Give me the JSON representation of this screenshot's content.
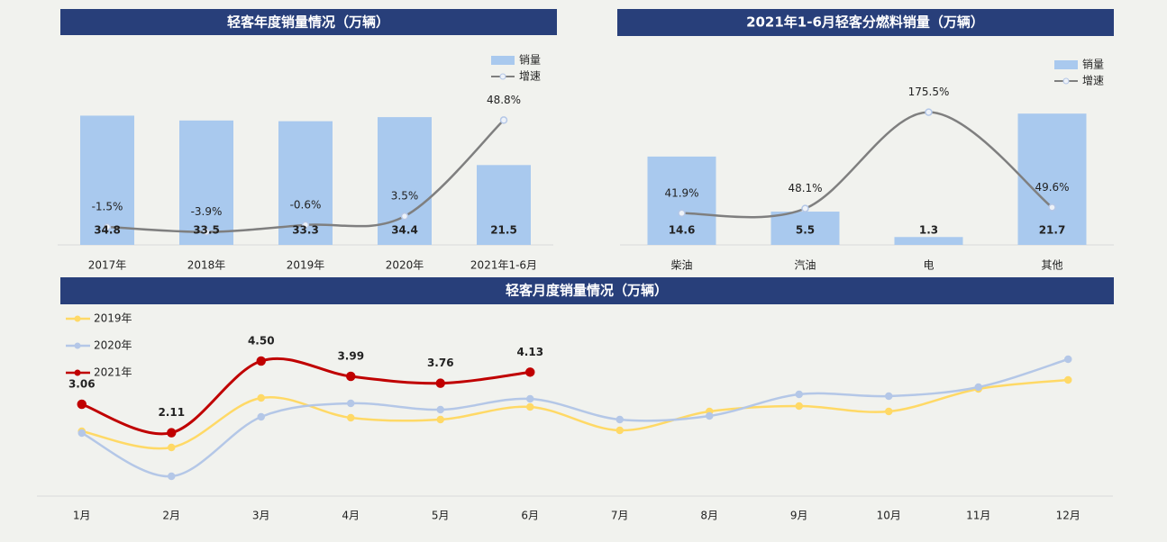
{
  "chart_data": [
    {
      "type": "combo",
      "title": "轻客年度销量情况（万辆）",
      "categories": [
        "2017年",
        "2018年",
        "2019年",
        "2020年",
        "2021年1-6月"
      ],
      "series": [
        {
          "name": "销量",
          "type": "bar",
          "color": "#a9c9ee",
          "values": [
            34.8,
            33.5,
            33.3,
            34.4,
            21.5
          ]
        },
        {
          "name": "增速",
          "type": "line",
          "axis": "y2",
          "color": "#7f7f7f",
          "values": [
            -1.5,
            -3.9,
            -0.6,
            3.5,
            48.8
          ],
          "value_labels": [
            "-1.5%",
            "-3.9%",
            "-0.6%",
            "3.5%",
            "48.8%"
          ]
        }
      ],
      "ylim": [
        0,
        40
      ],
      "y2lim": [
        -10,
        60
      ],
      "legend": "upper right"
    },
    {
      "type": "combo",
      "title": "2021年1-6月轻客分燃料销量（万辆）",
      "categories": [
        "柴油",
        "汽油",
        "电",
        "其他"
      ],
      "series": [
        {
          "name": "销量",
          "type": "bar",
          "color": "#a9c9ee",
          "values": [
            14.6,
            5.5,
            1.3,
            21.7
          ]
        },
        {
          "name": "增速",
          "type": "line",
          "axis": "y2",
          "color": "#7f7f7f",
          "values": [
            41.9,
            48.1,
            175.5,
            49.6
          ],
          "value_labels": [
            "41.9%",
            "48.1%",
            "175.5%",
            "49.6%"
          ]
        }
      ],
      "ylim": [
        0,
        25
      ],
      "y2lim": [
        0,
        200
      ],
      "legend": "upper right"
    },
    {
      "type": "line",
      "title": "轻客月度销量情况（万辆）",
      "categories": [
        "1月",
        "2月",
        "3月",
        "4月",
        "5月",
        "6月",
        "7月",
        "8月",
        "9月",
        "10月",
        "11月",
        "12月"
      ],
      "series": [
        {
          "name": "2019年",
          "color": "#ffd966",
          "values": [
            2.16,
            1.62,
            3.27,
            2.61,
            2.55,
            2.97,
            2.19,
            2.82,
            3.0,
            2.82,
            3.57,
            3.87
          ]
        },
        {
          "name": "2020年",
          "color": "#b4c7e7",
          "values": [
            2.1,
            0.66,
            2.64,
            3.09,
            2.88,
            3.24,
            2.55,
            2.67,
            3.39,
            3.33,
            3.63,
            4.56
          ]
        },
        {
          "name": "2021年",
          "color": "#c00000",
          "values": [
            3.06,
            2.11,
            4.5,
            3.99,
            3.76,
            4.13,
            null,
            null,
            null,
            null,
            null,
            null
          ],
          "value_labels": [
            "3.06",
            "2.11",
            "4.50",
            "3.99",
            "3.76",
            "4.13",
            null,
            null,
            null,
            null,
            null,
            null
          ]
        }
      ],
      "ylim": [
        0,
        6
      ],
      "legend": "upper left"
    }
  ]
}
